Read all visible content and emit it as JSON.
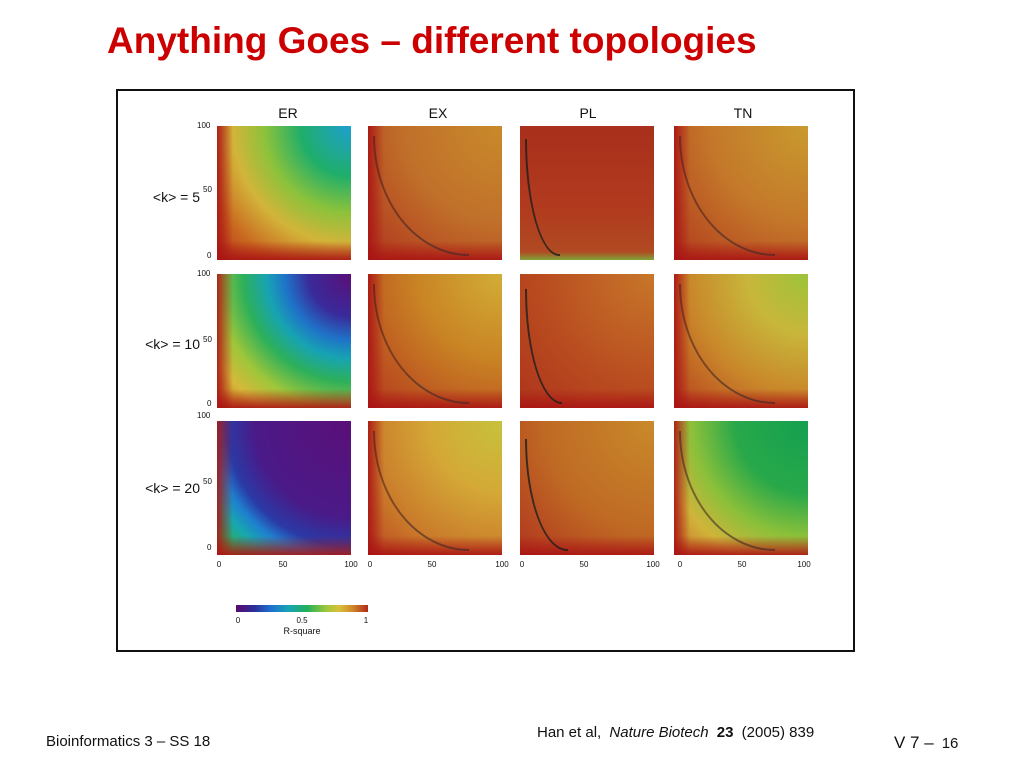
{
  "slide": {
    "title": "Anything Goes – different topologies",
    "footer_left": "Bioinformatics 3 – SS 18",
    "citation": {
      "authors": "Han et al,",
      "journal": "Nature Biotech",
      "volume": "23",
      "year_pages": "(2005) 839"
    },
    "slide_ref": "V 7 –",
    "page_number": "16"
  },
  "figure": {
    "columns": [
      "ER",
      "EX",
      "PL",
      "TN"
    ],
    "rows": [
      "<k> = 5",
      "<k> = 10",
      "<k> = 20"
    ],
    "y_ticks": [
      "100",
      "50",
      "0"
    ],
    "x_ticks": [
      "0",
      "50",
      "100"
    ],
    "colorbar": {
      "label": "R-square",
      "ticks": [
        "0",
        "0.5",
        "1"
      ]
    },
    "panel_colors": [
      [
        "#1e9fd0",
        "#c9731f",
        "#b53a1f",
        "#c07b25"
      ],
      [
        "#5b0f78",
        "#c98824",
        "#b8421f",
        "#b6c036"
      ],
      [
        "#5b0f78",
        "#c3b73a",
        "#bb4a22",
        "#14a050"
      ]
    ]
  }
}
